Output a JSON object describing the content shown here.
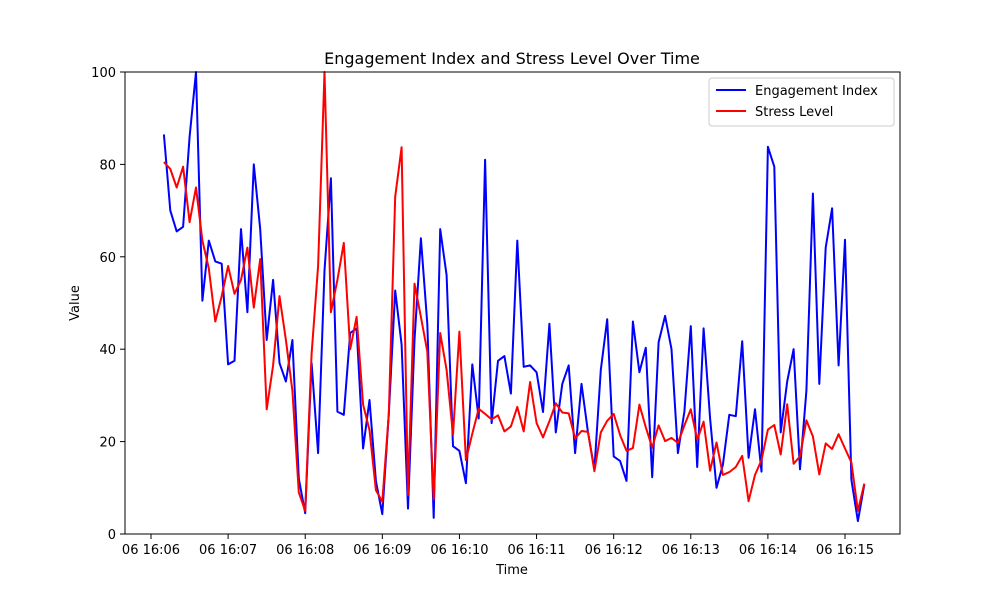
{
  "chart_data": {
    "type": "line",
    "title": "Engagement Index and Stress Level Over Time",
    "xlabel": "Time",
    "ylabel": "Value",
    "ylim": [
      0,
      100
    ],
    "grid": false,
    "legend_position": "top-right",
    "x_start": "06 16:06:10",
    "x_step_seconds": 5,
    "x_ticks": [
      "06 16:06",
      "06 16:07",
      "06 16:08",
      "06 16:09",
      "06 16:10",
      "06 16:11",
      "06 16:12",
      "06 16:13",
      "06 16:14",
      "06 16:15"
    ],
    "y_ticks": [
      "0",
      "20",
      "40",
      "60",
      "80",
      "100"
    ],
    "series": [
      {
        "name": "Engagement Index",
        "color": "#0000ff",
        "values": [
          86.5,
          70,
          65.5,
          66.5,
          86,
          100,
          50.5,
          63.5,
          59,
          58.5,
          36.7,
          37.5,
          66,
          48,
          80,
          66,
          42,
          55,
          37,
          33,
          42,
          12,
          4.5,
          37,
          17.5,
          57,
          77,
          26.5,
          25.8,
          43.5,
          44.5,
          18.5,
          29,
          11.5,
          4.3,
          26,
          52.7,
          41,
          5.5,
          42,
          64,
          45.5,
          3.5,
          66,
          56,
          19,
          18,
          11,
          36.7,
          25,
          81,
          24,
          37.5,
          38.5,
          30.4,
          63.5,
          36.2,
          36.5,
          35,
          26.4,
          45.5,
          22,
          32.5,
          36.5,
          17.5,
          32.5,
          22,
          14,
          35.5,
          46.5,
          16.8,
          15.8,
          11.5,
          46,
          35,
          40.3,
          12.3,
          41.5,
          47.2,
          40,
          17.5,
          26.5,
          45,
          14.5,
          44.5,
          25,
          10,
          15,
          25.8,
          25.5,
          41.7,
          16.5,
          27,
          13.5,
          83.8,
          79.5,
          22,
          33,
          40,
          14,
          31,
          73.7,
          32.5,
          62,
          70.5,
          36.5,
          63.7,
          11.7,
          2.8,
          10.7
        ]
      },
      {
        "name": "Stress Level",
        "color": "#ff0000",
        "values": [
          80.5,
          79,
          75,
          79.5,
          67.5,
          75,
          63.5,
          57.5,
          46,
          51.5,
          58,
          52,
          55,
          62,
          49,
          59.5,
          27,
          36.5,
          51.5,
          42,
          31,
          9,
          5,
          39,
          58,
          100,
          48,
          55,
          63,
          40,
          47,
          28,
          22.5,
          9.5,
          7,
          26,
          73,
          83.7,
          8.5,
          54.2,
          47,
          39.5,
          7.5,
          43.5,
          35.5,
          21.5,
          43.8,
          16,
          21.7,
          27.1,
          26,
          24.8,
          25.7,
          22.2,
          23.3,
          27.5,
          22.2,
          32.9,
          24,
          20.9,
          24.4,
          28.3,
          26.3,
          26.1,
          20.7,
          22.3,
          22.1,
          13.6,
          22,
          24.5,
          26,
          21.4,
          18,
          18.6,
          28,
          23.1,
          18.7,
          23.5,
          20.1,
          20.8,
          19.7,
          23.5,
          27,
          20.4,
          24.3,
          13.7,
          19.8,
          12.8,
          13.4,
          14.5,
          16.9,
          7.1,
          12.8,
          16,
          22.6,
          23.6,
          17.2,
          28.1,
          15.2,
          16.8,
          24.6,
          21.1,
          12.9,
          19.6,
          18.4,
          21.6,
          18.5,
          15.5,
          5,
          10.9
        ]
      }
    ]
  }
}
